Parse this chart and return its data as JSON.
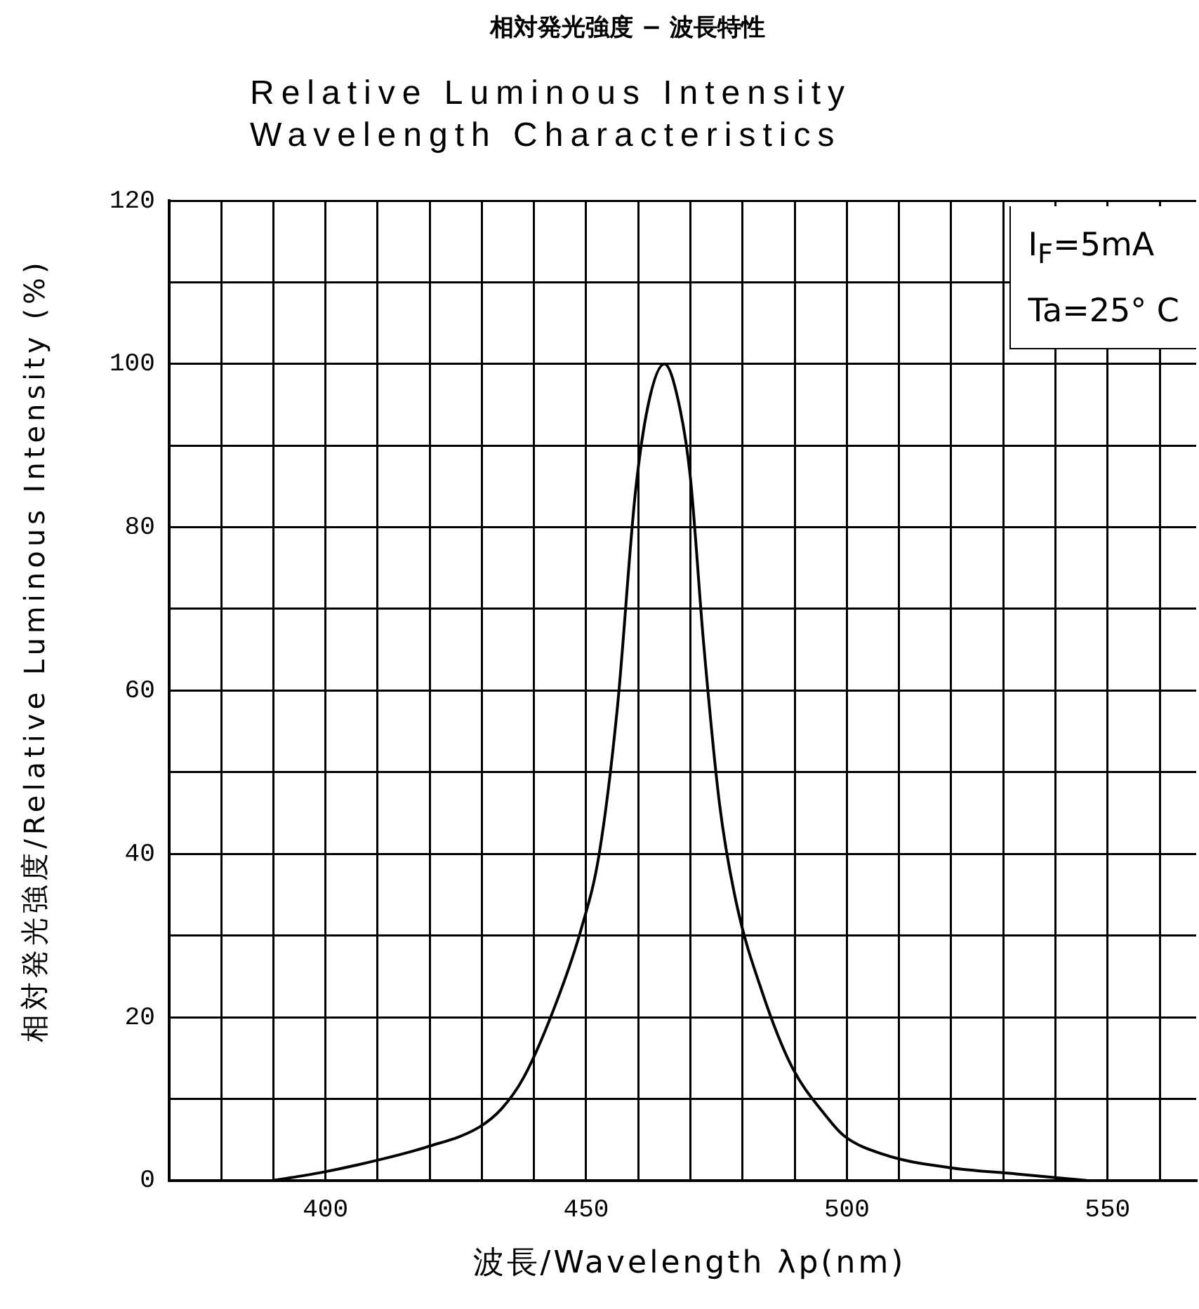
{
  "chart_data": {
    "type": "line",
    "title": "相対発光強度 − 波長特性",
    "subtitle": "Relative Luminous Intensity\nWavelength Characteristics",
    "xlabel": "波長/Wavelength λp(nm)",
    "ylabel": "相対発光強度/Relative Luminous Intensity (%)",
    "annotations": [
      "I$_{F}$=5mA",
      "Ta=25° C"
    ],
    "xlim": [
      370,
      567
    ],
    "ylim": [
      0,
      120
    ],
    "xticks": [
      {
        "value": 380,
        "label": null
      },
      {
        "value": 390,
        "label": null
      },
      400,
      {
        "value": 410,
        "label": null
      },
      {
        "value": 420,
        "label": null
      },
      {
        "value": 430,
        "label": null
      },
      {
        "value": 440,
        "label": null
      },
      450,
      {
        "value": 460,
        "label": null
      },
      {
        "value": 470,
        "label": null
      },
      {
        "value": 480,
        "label": null
      },
      {
        "value": 490,
        "label": null
      },
      500,
      {
        "value": 510,
        "label": null
      },
      {
        "value": 520,
        "label": null
      },
      {
        "value": 530,
        "label": null
      },
      {
        "value": 540,
        "label": null
      },
      550,
      {
        "value": 560,
        "label": null
      }
    ],
    "yticks": [
      0,
      {
        "value": 10,
        "label": null
      },
      20,
      {
        "value": 30,
        "label": null
      },
      40,
      {
        "value": 50,
        "label": null
      },
      60,
      {
        "value": 70,
        "label": null
      },
      80,
      {
        "value": 90,
        "label": null
      },
      100,
      {
        "value": 110,
        "label": null
      },
      120
    ],
    "grid": true,
    "marker": "none",
    "line_style": "solid",
    "x": [
      390,
      399.4,
      409.4,
      419.4,
      429.4,
      433.8,
      438,
      443.8,
      449,
      452.5,
      456,
      459.4,
      461.9,
      465,
      468,
      470,
      472.5,
      475.6,
      478.8,
      483.8,
      489.4,
      496,
      499.4,
      507.5,
      519.4,
      532.5,
      546
    ],
    "series": [
      {
        "color": "#000000",
        "values": [
          0,
          1,
          2.4,
          4.1,
          6.5,
          8.8,
          12.6,
          21,
          30.7,
          40,
          58,
          84,
          95,
          100,
          94.5,
          86,
          66,
          46,
          34,
          23,
          14,
          7.9,
          5.5,
          3.1,
          1.6,
          0.8,
          0
        ]
      }
    ]
  }
}
